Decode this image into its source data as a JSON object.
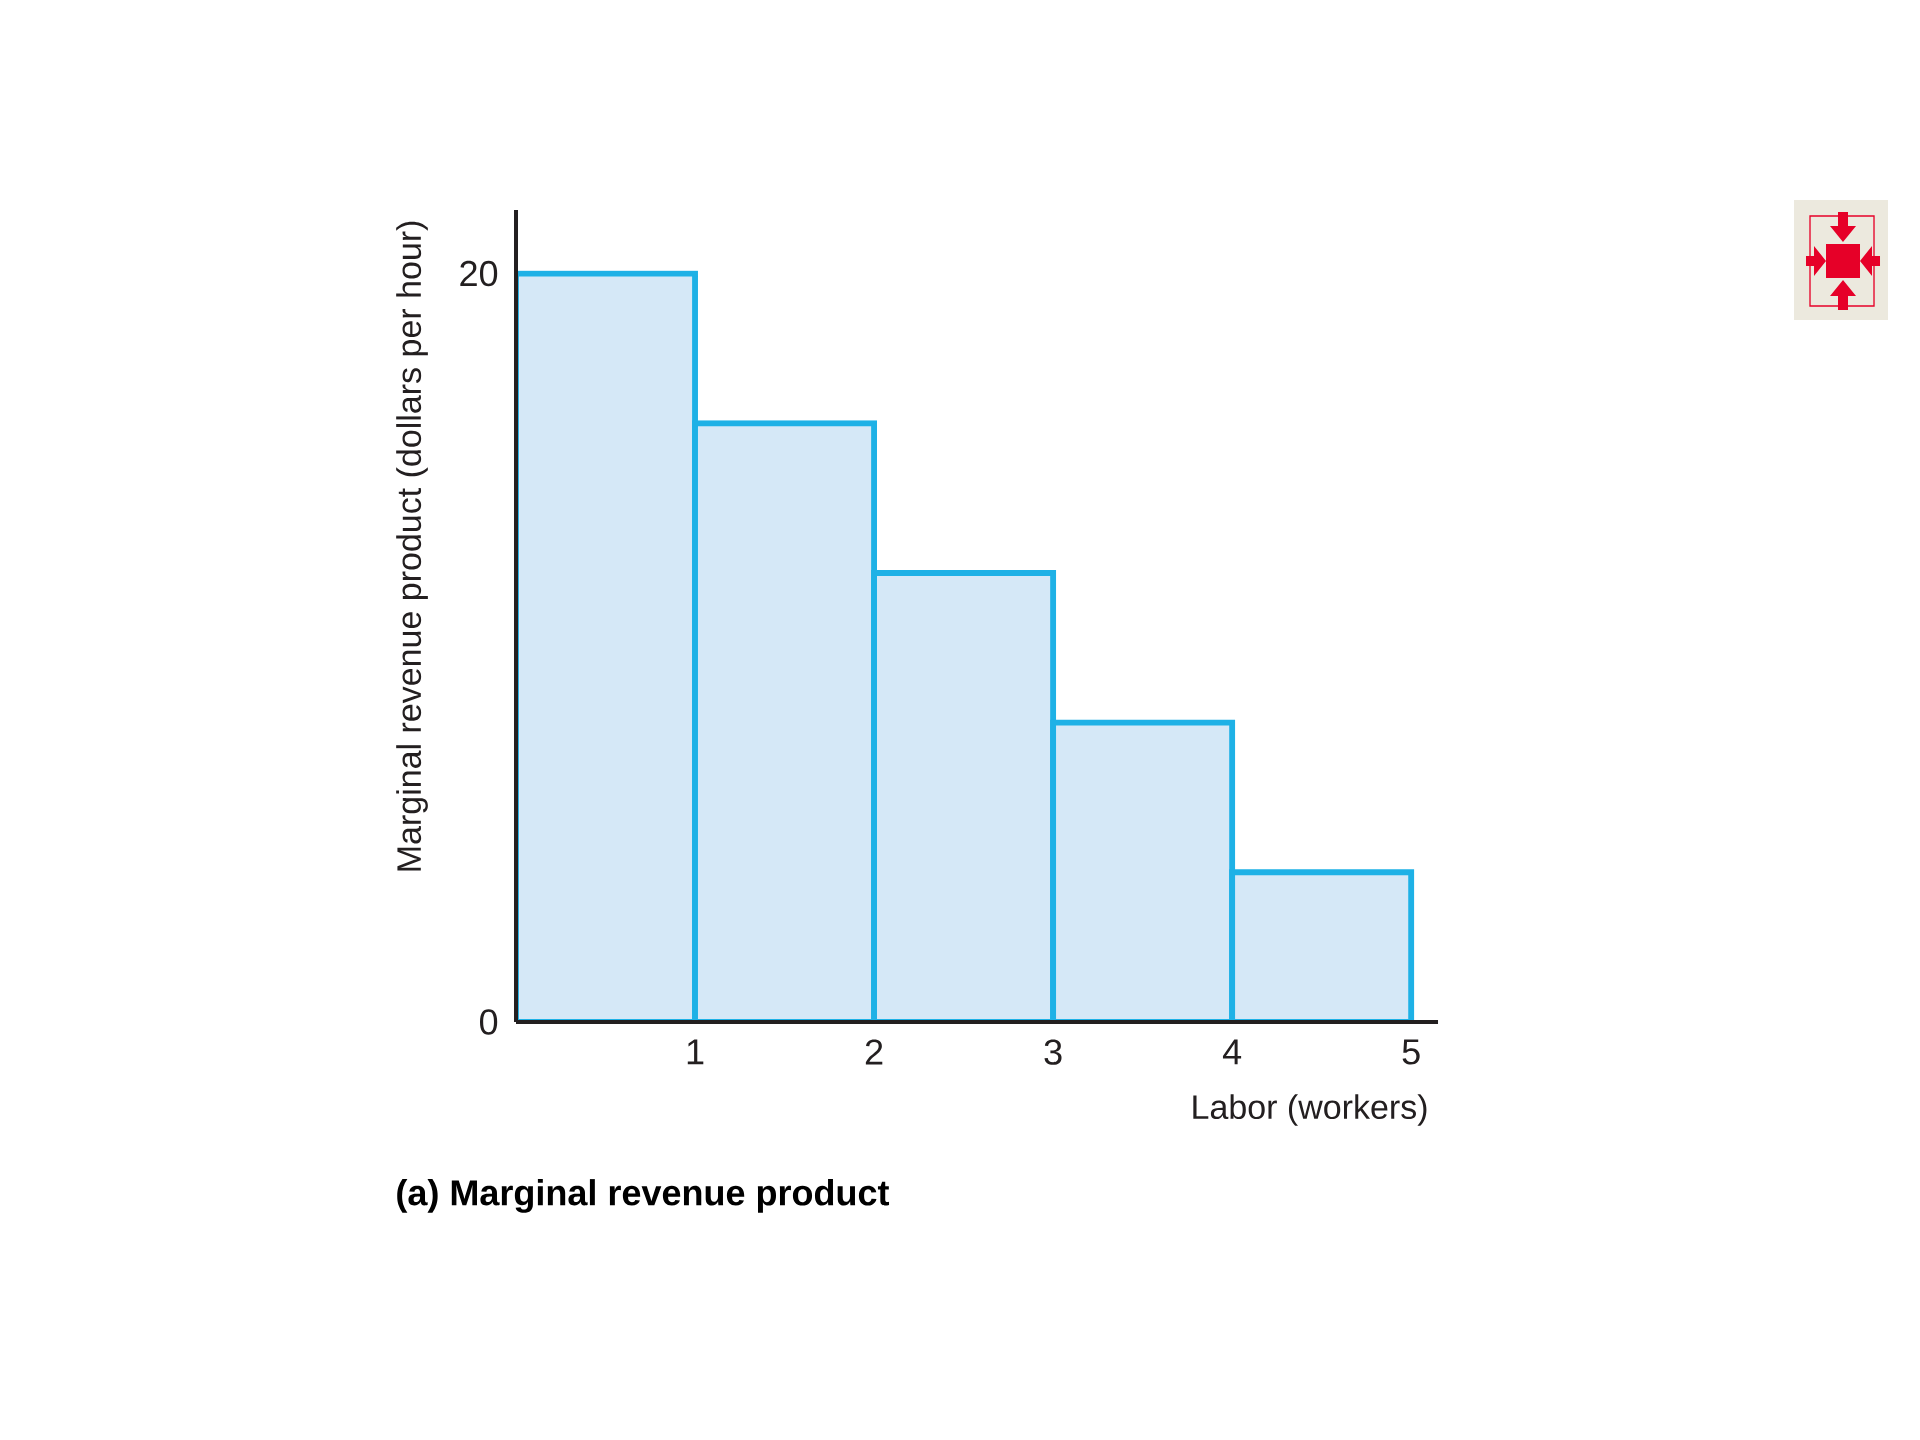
{
  "chart_data": {
    "type": "histogram",
    "title": "(a) Marginal revenue product",
    "xlabel": "Labor (workers)",
    "ylabel": "Marginal revenue product (dollars per hour)",
    "bins": [
      0,
      1,
      2,
      3,
      4,
      5
    ],
    "values": [
      20,
      16,
      12,
      8,
      4
    ],
    "color": "#d5e8f7",
    "xlim": [
      0,
      5.15
    ],
    "ylim": [
      0,
      21.7
    ],
    "xticks": [
      1,
      2,
      3,
      4,
      5
    ],
    "yticks": [
      0,
      20
    ]
  }
}
